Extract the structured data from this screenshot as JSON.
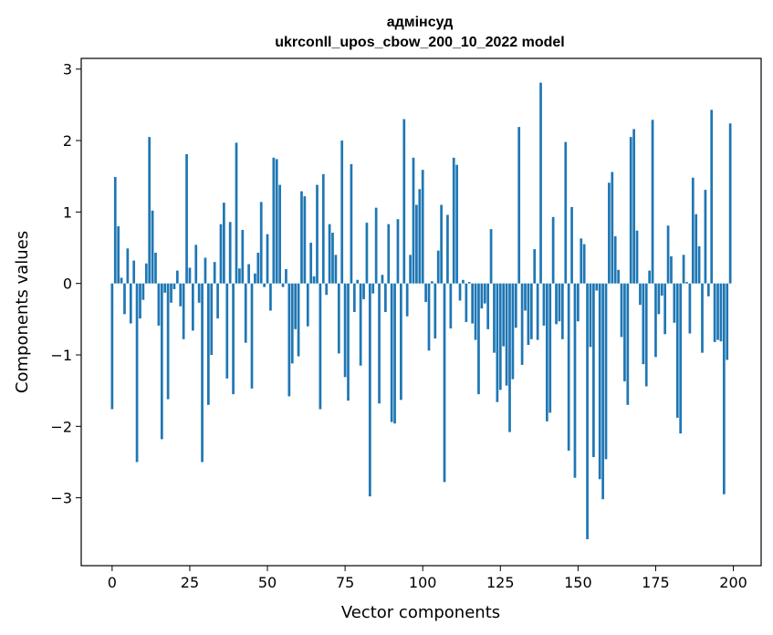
{
  "chart_data": {
    "type": "bar",
    "title_line1": "адмінсуд",
    "title_line2": "ukrconll_upos_cbow_200_10_2022 model",
    "xlabel": "Vector components",
    "ylabel": "Components values",
    "xlim": [
      -9.95,
      208.95
    ],
    "ylim": [
      -3.95,
      3.15
    ],
    "xticks": [
      0,
      25,
      50,
      75,
      100,
      125,
      150,
      175,
      200
    ],
    "yticks": [
      3,
      2,
      1,
      0,
      -1,
      -2,
      -3
    ],
    "ytick_labels": [
      "3",
      "2",
      "1",
      "0",
      "−1",
      "−2",
      "−3"
    ],
    "bar_color": "#1f77b4",
    "grid": false,
    "values": [
      -1.76,
      1.49,
      0.8,
      0.08,
      -0.43,
      0.49,
      -0.56,
      0.32,
      -2.5,
      -0.49,
      -0.23,
      0.28,
      2.05,
      1.02,
      0.43,
      -0.59,
      -2.18,
      -0.13,
      -1.62,
      -0.27,
      -0.08,
      0.18,
      -0.32,
      -0.78,
      1.81,
      0.22,
      -0.66,
      0.54,
      -0.27,
      -2.5,
      0.36,
      -1.7,
      -1.0,
      0.3,
      -0.49,
      0.83,
      1.13,
      -1.33,
      0.86,
      -1.55,
      1.97,
      0.21,
      0.75,
      -0.83,
      0.27,
      -1.47,
      0.14,
      0.43,
      1.14,
      -0.05,
      0.69,
      -0.38,
      1.76,
      1.74,
      1.38,
      -0.05,
      0.2,
      -1.58,
      -1.12,
      -0.64,
      -1.02,
      1.29,
      1.22,
      -0.6,
      0.57,
      0.1,
      1.38,
      -1.76,
      1.53,
      -0.16,
      0.83,
      0.71,
      0.4,
      -0.98,
      2.0,
      -1.31,
      -1.64,
      1.67,
      -0.4,
      0.05,
      -1.15,
      -0.22,
      0.85,
      -2.98,
      -0.14,
      1.06,
      -1.68,
      0.12,
      -0.4,
      0.83,
      -1.94,
      -1.96,
      0.9,
      -1.63,
      2.3,
      -0.46,
      0.4,
      1.76,
      1.1,
      1.32,
      1.59,
      -0.26,
      -0.94,
      0.03,
      -0.77,
      0.46,
      1.1,
      -2.78,
      0.96,
      -0.63,
      1.76,
      1.66,
      -0.24,
      0.05,
      -0.54,
      0.02,
      -0.56,
      -0.79,
      -1.55,
      -0.35,
      -0.28,
      -0.64,
      0.76,
      -0.97,
      -1.66,
      -1.49,
      -0.88,
      -1.43,
      -2.08,
      -1.34,
      -0.62,
      2.19,
      -1.14,
      -0.38,
      -0.86,
      -0.78,
      0.48,
      -0.79,
      2.81,
      -0.59,
      -1.93,
      -1.81,
      0.93,
      -0.57,
      -0.53,
      -0.78,
      1.98,
      -2.34,
      1.07,
      -2.72,
      -0.53,
      0.63,
      0.55,
      -3.58,
      -0.89,
      -2.43,
      -0.1,
      -2.74,
      -3.02,
      -2.46,
      1.41,
      1.56,
      0.66,
      0.19,
      -0.75,
      -1.37,
      -1.7,
      2.05,
      2.16,
      0.74,
      -0.3,
      -1.13,
      -1.44,
      0.18,
      2.29,
      -1.03,
      -0.43,
      -0.17,
      -0.71,
      0.81,
      0.38,
      -0.55,
      -1.88,
      -2.1,
      0.4,
      0.02,
      -0.7,
      1.48,
      0.97,
      0.52,
      -0.97,
      1.31,
      -0.18,
      2.43,
      -0.82,
      -0.79,
      -0.81,
      -2.95,
      -1.07,
      2.24
    ]
  }
}
